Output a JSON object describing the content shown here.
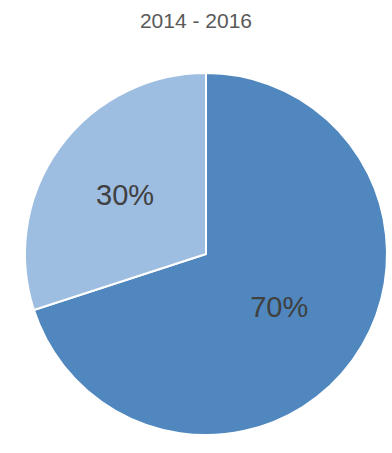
{
  "chart_data": {
    "type": "pie",
    "title": "2014 - 2016",
    "values": [
      70,
      30
    ],
    "value_labels": [
      "70%",
      "30%"
    ],
    "colors": [
      "#4f87be",
      "#9dbde1"
    ],
    "data_labels": true
  }
}
